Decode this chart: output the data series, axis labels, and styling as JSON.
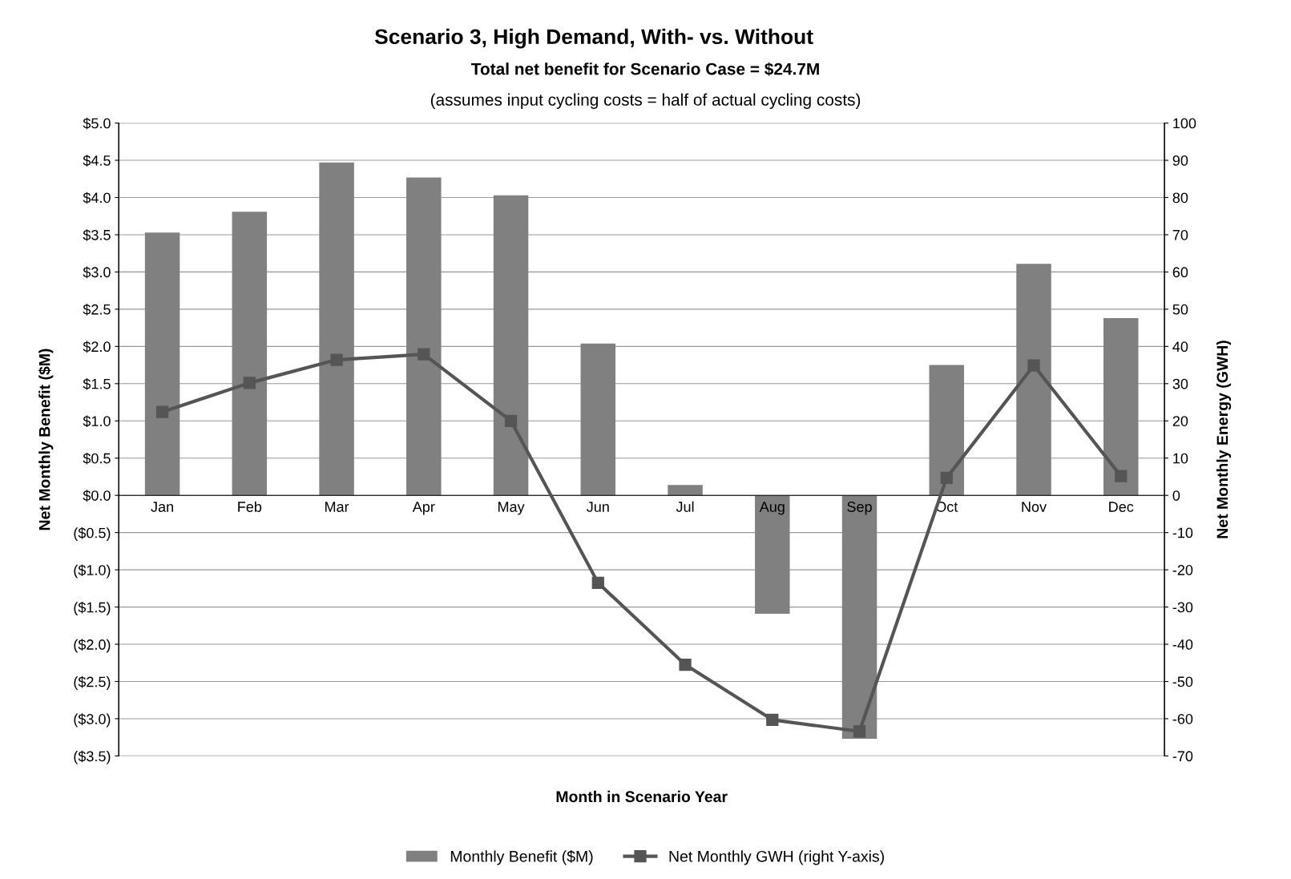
{
  "chart_data": {
    "type": "bar",
    "title": "Scenario 3, High Demand, With- vs. Without",
    "subtitle": "Total net benefit for Scenario Case = $24.7M",
    "annotations": [
      "(assumes input cycling costs = half of actual cycling costs)"
    ],
    "xlabel": "Month in Scenario Year",
    "ylabel": "Net Monthly Benefit ($M)",
    "y2label": "Net Monthly Energy (GWH)",
    "categories": [
      "Jan",
      "Feb",
      "Mar",
      "Apr",
      "May",
      "Jun",
      "Jul",
      "Aug",
      "Sep",
      "Oct",
      "Nov",
      "Dec"
    ],
    "series": [
      {
        "name": "Monthly Benefit ($M)",
        "color": "#808080",
        "values": [
          3.53,
          3.81,
          4.47,
          4.27,
          4.03,
          2.04,
          0.14,
          -1.59,
          -3.27,
          1.75,
          3.11,
          2.38
        ]
      },
      {
        "name": "Net Monthly GWH (right Y-axis)",
        "type": "line",
        "axis": "y2",
        "color": "#555555",
        "marker": "square",
        "line_style": "solid",
        "values": [
          22.4,
          30.2,
          36.4,
          37.9,
          20.0,
          -23.5,
          -45.5,
          -60.3,
          -63.4,
          4.7,
          34.9,
          5.2
        ]
      }
    ],
    "ylim": [
      -3.5,
      5.0
    ],
    "yticks": [
      {
        "value": 5.0,
        "label": "$5.0"
      },
      {
        "value": 4.5,
        "label": "$4.5"
      },
      {
        "value": 4.0,
        "label": "$4.0"
      },
      {
        "value": 3.5,
        "label": "$3.5"
      },
      {
        "value": 3.0,
        "label": "$3.0"
      },
      {
        "value": 2.5,
        "label": "$2.5"
      },
      {
        "value": 2.0,
        "label": "$2.0"
      },
      {
        "value": 1.5,
        "label": "$1.5"
      },
      {
        "value": 1.0,
        "label": "$1.0"
      },
      {
        "value": 0.5,
        "label": "$0.5"
      },
      {
        "value": 0.0,
        "label": "$0.0"
      },
      {
        "value": -0.5,
        "label": "($0.5)"
      },
      {
        "value": -1.0,
        "label": "($1.0)"
      },
      {
        "value": -1.5,
        "label": "($1.5)"
      },
      {
        "value": -2.0,
        "label": "($2.0)"
      },
      {
        "value": -2.5,
        "label": "($2.5)"
      },
      {
        "value": -3.0,
        "label": "($3.0)"
      },
      {
        "value": -3.5,
        "label": "($3.5)"
      }
    ],
    "y2lim": [
      -70,
      100
    ],
    "y2ticks": [
      100,
      90,
      80,
      70,
      60,
      50,
      40,
      30,
      20,
      10,
      0,
      -10,
      -20,
      -30,
      -40,
      -50,
      -60,
      -70
    ],
    "grid": "y",
    "legend": "bottom"
  }
}
